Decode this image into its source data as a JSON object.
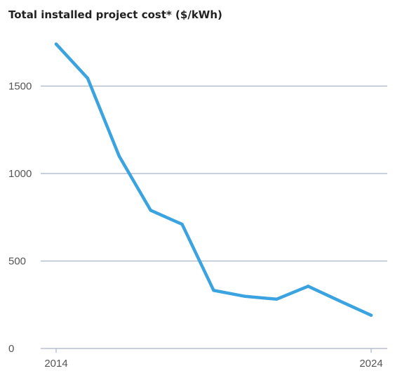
{
  "chart_data": {
    "type": "line",
    "title": "Total installed project cost* ($/kWh)",
    "xlabel": "",
    "ylabel": "",
    "x": [
      2014,
      2015,
      2016,
      2017,
      2018,
      2019,
      2020,
      2021,
      2022,
      2023,
      2024
    ],
    "series": [
      {
        "values": [
          1740,
          1545,
          1100,
          790,
          710,
          332,
          298,
          282,
          356,
          272,
          190
        ]
      }
    ],
    "xlim": [
      2014,
      2024
    ],
    "ylim": [
      0,
      1700
    ],
    "x_tick_labels": [
      "2014",
      "2024"
    ],
    "y_tick_labels": [
      "0",
      "500",
      "1000",
      "1500"
    ],
    "y_ticks": [
      0,
      500,
      1000,
      1500
    ],
    "grid": "horizontal",
    "legend": "none",
    "colors": {
      "line": "#3ba3e0",
      "grid": "#a9b3c6",
      "axis": "#a9b3c6"
    }
  }
}
